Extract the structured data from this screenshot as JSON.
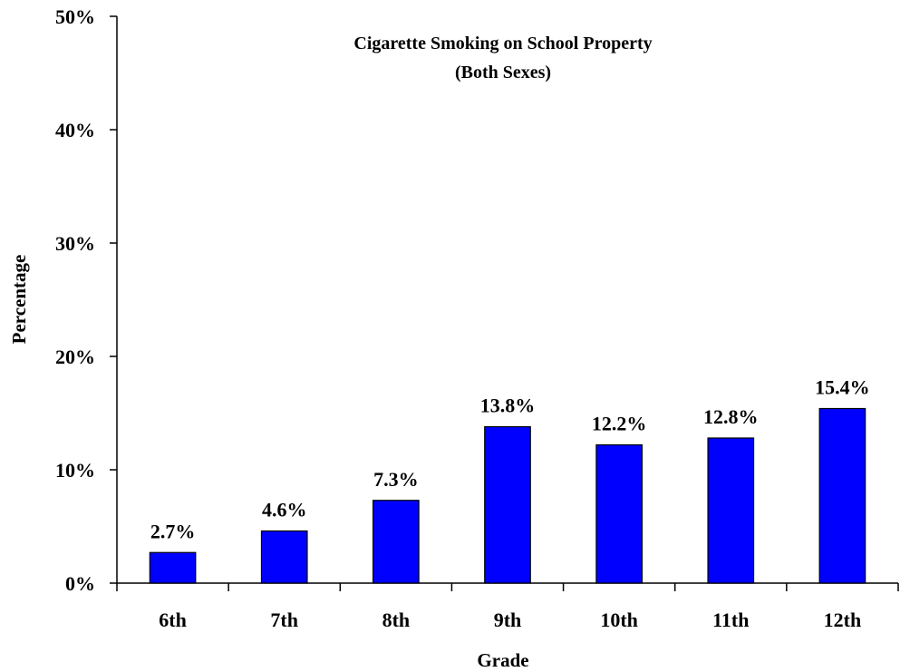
{
  "chart_data": {
    "type": "bar",
    "title": "Cigarette Smoking on School Property",
    "subtitle": "(Both Sexes)",
    "xlabel": "Grade",
    "ylabel": "Percentage",
    "categories": [
      "6th",
      "7th",
      "8th",
      "9th",
      "10th",
      "11th",
      "12th"
    ],
    "values": [
      2.7,
      4.6,
      7.3,
      13.8,
      12.2,
      12.8,
      15.4
    ],
    "data_labels": [
      "2.7%",
      "4.6%",
      "7.3%",
      "13.8%",
      "12.2%",
      "12.8%",
      "15.4%"
    ],
    "ylim": [
      0,
      50
    ],
    "yticks": [
      0,
      10,
      20,
      30,
      40,
      50
    ],
    "ytick_labels": [
      "0%",
      "10%",
      "20%",
      "30%",
      "40%",
      "50%"
    ],
    "grid": false,
    "legend": "none",
    "bar_color": "#0000ff"
  }
}
